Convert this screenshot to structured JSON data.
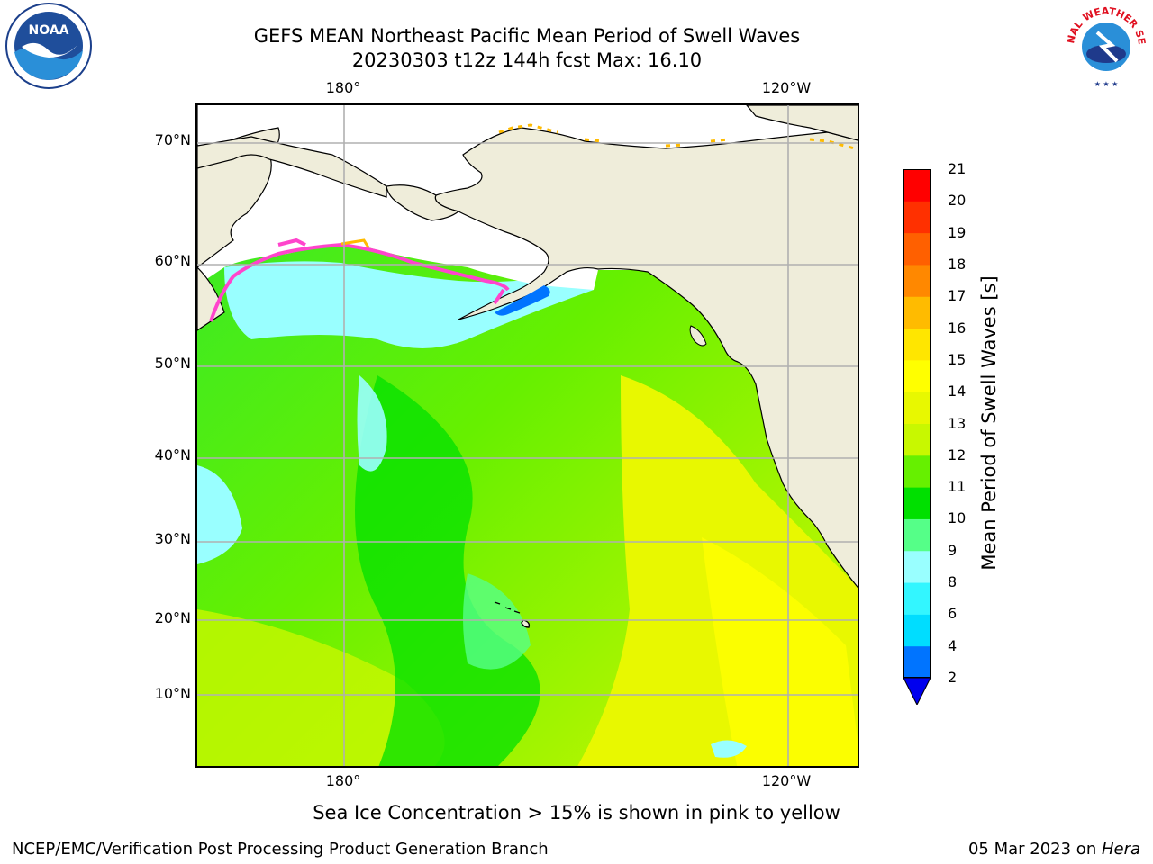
{
  "title": {
    "line1": "GEFS MEAN Northeast Pacific Mean Period of Swell Waves",
    "line2": "20230303 t12z 144h fcst   Max: 16.10"
  },
  "map": {
    "lon_labels_top": [
      "180°",
      "120°W"
    ],
    "lon_labels_bottom": [
      "180°",
      "120°W"
    ],
    "lat_labels": [
      "70°N",
      "60°N",
      "50°N",
      "40°N",
      "30°N",
      "20°N",
      "10°N"
    ],
    "colors": {
      "land": "#efedda",
      "ice_free_water": "#ffffff",
      "grid": "#b0b0b0",
      "coast": "#000000",
      "sea_ice": "#ff44cc"
    }
  },
  "colorbar": {
    "title": "Mean Period of Swell Waves [s]",
    "tick_labels": [
      "21",
      "20",
      "19",
      "18",
      "17",
      "16",
      "15",
      "14",
      "13",
      "12",
      "11",
      "10",
      "9",
      "8",
      "6",
      "4",
      "2"
    ],
    "levels": [
      2,
      4,
      6,
      8,
      9,
      10,
      11,
      12,
      13,
      14,
      15,
      16,
      17,
      18,
      19,
      20,
      21
    ],
    "colors": [
      "#0074ff",
      "#00ddff",
      "#33f6ff",
      "#99ffff",
      "#55ff88",
      "#00e000",
      "#66f000",
      "#c8f800",
      "#e8f800",
      "#ffff00",
      "#ffe600",
      "#ffbb00",
      "#ff8800",
      "#ff6000",
      "#ff3000",
      "#ff0000"
    ],
    "under_color": "#0000ee"
  },
  "footnote": "Sea Ice Concentration > 15% is shown in pink to yellow",
  "credit": {
    "left": "NCEP/EMC/Verification Post Processing Product Generation Branch",
    "date": "05 Mar 2023 on ",
    "host": "Hera"
  },
  "logos": {
    "noaa_text": "NOAA",
    "nws_text": "NATIONAL WEATHER SERVICE"
  }
}
